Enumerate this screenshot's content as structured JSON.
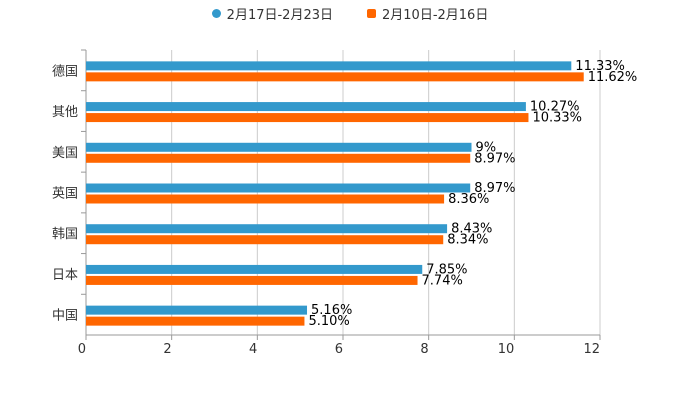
{
  "chart_data": {
    "type": "bar",
    "orientation": "horizontal",
    "title": "",
    "xlabel": "",
    "ylabel": "",
    "xlim": [
      0,
      12
    ],
    "xticks": [
      "0",
      "2",
      "4",
      "6",
      "8",
      "10",
      "12"
    ],
    "grid": true,
    "legend_position": "top-center",
    "categories": [
      "德国",
      "其他",
      "美国",
      "英国",
      "韩国",
      "日本",
      "中国"
    ],
    "series": [
      {
        "name": "2月17日-2月23日",
        "color": "#3399cc",
        "values": [
          11.33,
          10.27,
          9,
          8.97,
          8.43,
          7.85,
          5.16
        ],
        "labels": [
          "11.33%",
          "10.27%",
          "9%",
          "8.97%",
          "8.43%",
          "7.85%",
          "5.16%"
        ]
      },
      {
        "name": "2月10日-2月16日",
        "color": "#ff6600",
        "values": [
          11.62,
          10.33,
          8.97,
          8.36,
          8.34,
          7.74,
          5.1
        ],
        "labels": [
          "11.62%",
          "10.33%",
          "8.97%",
          "8.36%",
          "8.34%",
          "7.74%",
          "5.10%"
        ]
      }
    ]
  }
}
